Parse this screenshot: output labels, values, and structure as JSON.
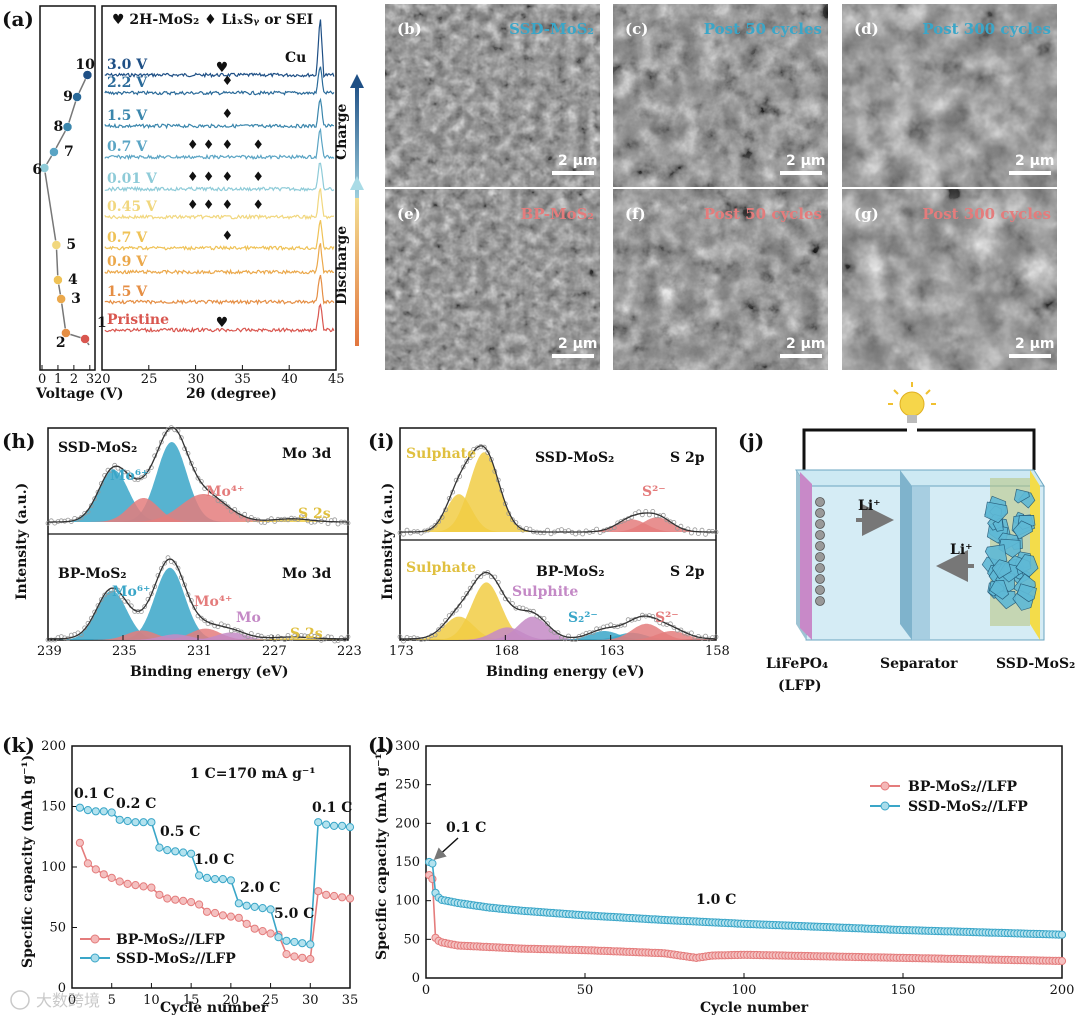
{
  "colors": {
    "blue": "#3aa6c8",
    "pink": "#e47c7c",
    "yellow": "#f1cc44",
    "purple": "#c489c6",
    "dark_blue": "#1e4f85",
    "orange": "#e89a45"
  },
  "panel_a": {
    "label": "(a)",
    "legend": "♥ 2H-MoS₂  ♦ LiₓSᵧ or SEI",
    "voltage_axis": {
      "label": "Voltage (V)",
      "ticks": [
        "0",
        "1",
        "2",
        "3"
      ]
    },
    "xrd_axis": {
      "label": "2θ (degree)",
      "ticks": [
        "20",
        "25",
        "30",
        "35",
        "40",
        "45"
      ]
    },
    "cu_label": "Cu",
    "charge_label": "Charge",
    "discharge_label": "Discharge",
    "point_numbers": [
      "1",
      "2",
      "3",
      "4",
      "5",
      "6",
      "7",
      "8",
      "9",
      "10"
    ],
    "traces": [
      {
        "name": "3.0 V",
        "color": "#1e4f85"
      },
      {
        "name": "2.2 V",
        "color": "#2a6a99"
      },
      {
        "name": "1.5 V",
        "color": "#3a86ac"
      },
      {
        "name": "0.7 V",
        "color": "#5aa4c4"
      },
      {
        "name": "0.01 V",
        "color": "#8ecbd8"
      },
      {
        "name": "0.45 V",
        "color": "#f1d77e"
      },
      {
        "name": "0.7 V",
        "color": "#efc256"
      },
      {
        "name": "0.9 V",
        "color": "#eba84b"
      },
      {
        "name": "1.5 V",
        "color": "#e58e44"
      },
      {
        "name": "Pristine",
        "color": "#d9564f"
      }
    ]
  },
  "sem": [
    {
      "label": "(b)",
      "title": "SSD-MoS₂",
      "scale": "2 μm",
      "title_color": "#3aa6c8"
    },
    {
      "label": "(c)",
      "title": "Post 50 cycles",
      "scale": "2 μm",
      "title_color": "#3aa6c8"
    },
    {
      "label": "(d)",
      "title": "Post 300 cycles",
      "scale": "2 μm",
      "title_color": "#3aa6c8"
    },
    {
      "label": "(e)",
      "title": "BP-MoS₂",
      "scale": "2 μm",
      "title_color": "#e47c7c"
    },
    {
      "label": "(f)",
      "title": "Post 50 cycles",
      "scale": "2 μm",
      "title_color": "#e47c7c"
    },
    {
      "label": "(g)",
      "title": "Post 300 cycles",
      "scale": "2 μm",
      "title_color": "#e47c7c"
    }
  ],
  "panel_h": {
    "label": "(h)",
    "top": {
      "sample": "SSD-MoS₂",
      "region": "Mo 3d",
      "peaks": [
        "Mo⁶⁺",
        "Mo⁴⁺",
        "S 2s"
      ]
    },
    "bottom": {
      "sample": "BP-MoS₂",
      "region": "Mo 3d",
      "peaks": [
        "Mo⁶⁺",
        "Mo⁴⁺",
        "Mo",
        "S 2s"
      ]
    },
    "ylabel": "Intensity (a.u.)",
    "xlabel": "Binding energy (eV)",
    "ticks": [
      "239",
      "235",
      "231",
      "227",
      "223"
    ]
  },
  "panel_i": {
    "label": "(i)",
    "top": {
      "sample": "SSD-MoS₂",
      "region": "S 2p",
      "peaks": [
        "Sulphate",
        "S²⁻"
      ]
    },
    "bottom": {
      "sample": "BP-MoS₂",
      "region": "S 2p",
      "peaks": [
        "Sulphate",
        "Sulphite",
        "S₂²⁻",
        "S²⁻"
      ]
    },
    "ylabel": "Intensity (a.u.)",
    "xlabel": "Binding energy (eV)",
    "ticks": [
      "173",
      "168",
      "163",
      "158"
    ]
  },
  "panel_j": {
    "label": "(j)",
    "li_label": "Li⁺",
    "cathode": "LiFePO₄",
    "cathode_sub": "(LFP)",
    "separator": "Separator",
    "anode": "SSD-MoS₂"
  },
  "panel_k": {
    "label": "(k)",
    "note": "1 C=170 mA g⁻¹",
    "ylabel": "Specific capacity (mAh g⁻¹)",
    "xlabel": "Cycle number",
    "rate_labels": [
      "0.1 C",
      "0.2 C",
      "0.5 C",
      "1.0 C",
      "2.0 C",
      "5.0 C",
      "0.1 C"
    ],
    "legend": [
      "BP-MoS₂//LFP",
      "SSD-MoS₂//LFP"
    ]
  },
  "panel_l": {
    "label": "(l)",
    "ylabel": "Specific capacity (mAh g⁻¹)",
    "xlabel": "Cycle number",
    "annotation_01": "0.1 C",
    "annotation_10": "1.0 C",
    "legend": [
      "BP-MoS₂//LFP",
      "SSD-MoS₂//LFP"
    ]
  },
  "watermark": "大数跨境",
  "chart_data": [
    {
      "type": "line",
      "title": "",
      "xlabel": "Cycle number",
      "ylabel": "Specific capacity (mAh g⁻¹)",
      "xlim": [
        0,
        35
      ],
      "ylim": [
        0,
        200
      ],
      "series": [
        {
          "name": "BP-MoS₂//LFP",
          "x": [
            1,
            2,
            3,
            4,
            5,
            6,
            7,
            8,
            9,
            10,
            11,
            12,
            13,
            14,
            15,
            16,
            17,
            18,
            19,
            20,
            21,
            22,
            23,
            24,
            25,
            26,
            27,
            28,
            29,
            30,
            31,
            32,
            33,
            34,
            35
          ],
          "values": [
            120,
            103,
            98,
            94,
            91,
            88,
            86,
            85,
            84,
            83,
            77,
            74,
            73,
            72,
            71,
            69,
            63,
            62,
            60,
            59,
            58,
            53,
            49,
            47,
            45,
            44,
            28,
            26,
            25,
            24,
            80,
            77,
            76,
            75,
            74
          ]
        },
        {
          "name": "SSD-MoS₂//LFP",
          "x": [
            1,
            2,
            3,
            4,
            5,
            6,
            7,
            8,
            9,
            10,
            11,
            12,
            13,
            14,
            15,
            16,
            17,
            18,
            19,
            20,
            21,
            22,
            23,
            24,
            25,
            26,
            27,
            28,
            29,
            30,
            31,
            32,
            33,
            34,
            35
          ],
          "values": [
            149,
            147,
            146,
            146,
            145,
            139,
            138,
            137,
            137,
            137,
            116,
            114,
            113,
            112,
            111,
            93,
            91,
            90,
            90,
            89,
            70,
            68,
            67,
            66,
            65,
            42,
            39,
            38,
            37,
            36,
            137,
            135,
            134,
            134,
            133
          ]
        }
      ],
      "annotations": [
        "0.1 C",
        "0.2 C",
        "0.5 C",
        "1.0 C",
        "2.0 C",
        "5.0 C",
        "0.1 C",
        "1 C=170 mA g⁻¹"
      ]
    },
    {
      "type": "line",
      "title": "",
      "xlabel": "Cycle number",
      "ylabel": "Specific capacity (mAh g⁻¹)",
      "xlim": [
        0,
        200
      ],
      "ylim": [
        0,
        300
      ],
      "series": [
        {
          "name": "BP-MoS₂//LFP",
          "x": [
            1,
            2,
            3,
            4,
            5,
            10,
            20,
            30,
            50,
            75,
            85,
            90,
            100,
            125,
            150,
            175,
            200
          ],
          "values": [
            133,
            128,
            52,
            48,
            46,
            42,
            40,
            38,
            36,
            32,
            26,
            29,
            30,
            28,
            26,
            24,
            22
          ]
        },
        {
          "name": "SSD-MoS₂//LFP",
          "x": [
            1,
            2,
            3,
            4,
            5,
            10,
            20,
            30,
            50,
            75,
            100,
            125,
            150,
            175,
            200
          ],
          "values": [
            150,
            148,
            110,
            104,
            101,
            97,
            91,
            87,
            81,
            75,
            70,
            66,
            62,
            59,
            56
          ]
        }
      ],
      "annotations": [
        "0.1 C",
        "1.0 C"
      ]
    }
  ]
}
